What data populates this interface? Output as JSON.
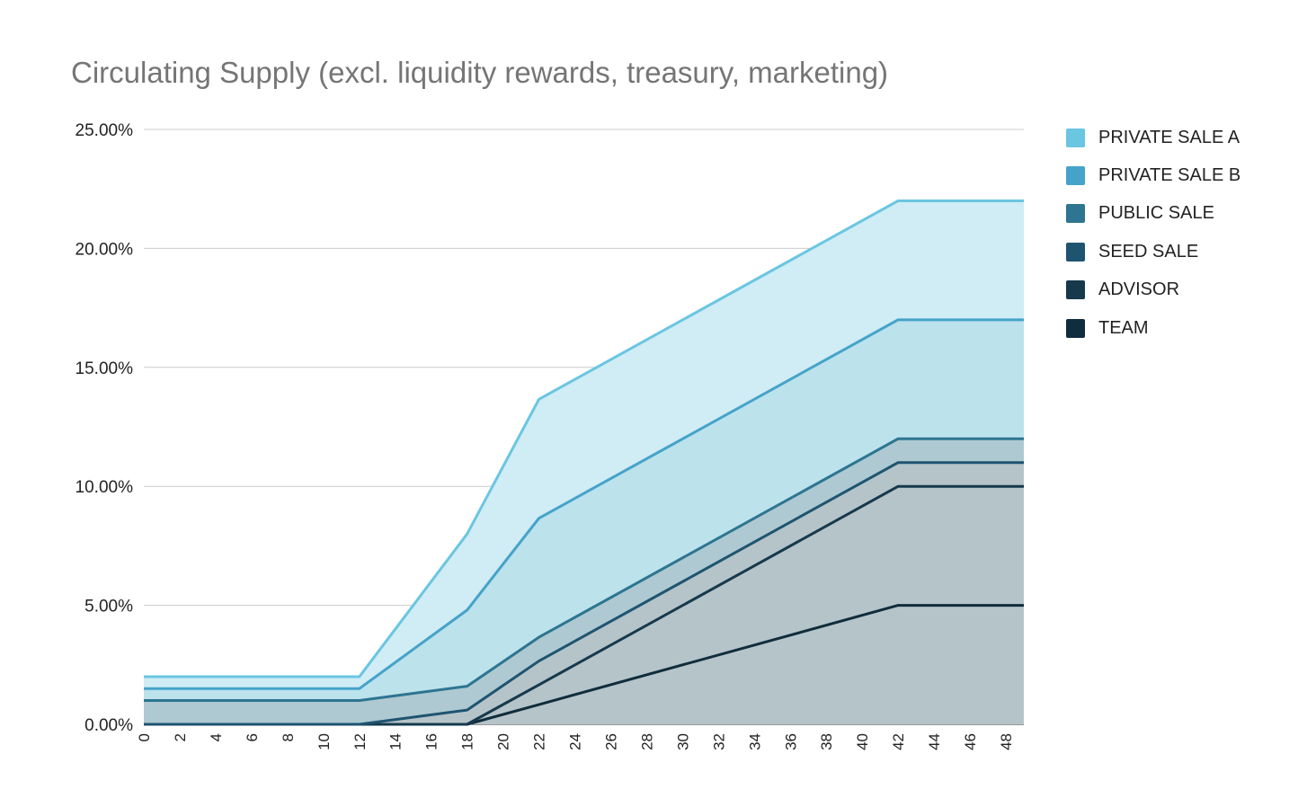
{
  "chart_data": {
    "type": "area",
    "stacked": true,
    "title": "Circulating Supply (excl. liquidity rewards, treasury, marketing)",
    "xlabel": "",
    "ylabel": "",
    "x_ticks": [
      "0",
      "2",
      "4",
      "6",
      "8",
      "10",
      "12",
      "14",
      "16",
      "18",
      "20",
      "22",
      "24",
      "26",
      "28",
      "30",
      "32",
      "34",
      "36",
      "38",
      "40",
      "42",
      "44",
      "46",
      "48"
    ],
    "x": [
      0,
      12,
      18,
      22,
      42,
      49
    ],
    "ylim": [
      0,
      25
    ],
    "y_ticks": [
      "0.00%",
      "5.00%",
      "10.00%",
      "15.00%",
      "20.00%",
      "25.00%"
    ],
    "grid": true,
    "legend_position": "right",
    "series": [
      {
        "name": "TEAM",
        "color": "#0f2d3c",
        "values": [
          0,
          0,
          0,
          0.83,
          5.0,
          5.0
        ]
      },
      {
        "name": "ADVISOR",
        "color": "#16394c",
        "values": [
          0,
          0,
          0,
          0.83,
          5.0,
          5.0
        ]
      },
      {
        "name": "SEED SALE",
        "color": "#1e5470",
        "values": [
          0,
          0,
          0.6,
          1.0,
          1.0,
          1.0
        ]
      },
      {
        "name": "PUBLIC SALE",
        "color": "#2d7591",
        "values": [
          1.0,
          1.0,
          1.0,
          1.0,
          1.0,
          1.0
        ]
      },
      {
        "name": "PRIVATE SALE B",
        "color": "#45a3c9",
        "values": [
          0.5,
          0.5,
          3.2,
          5.0,
          5.0,
          5.0
        ]
      },
      {
        "name": "PRIVATE SALE A",
        "color": "#6ac6e1",
        "values": [
          0.5,
          0.5,
          3.2,
          5.0,
          5.0,
          5.0
        ]
      }
    ],
    "fills": [
      "#b5c4c9",
      "#b5c4c9",
      "#b5c4c9",
      "#aec9d1",
      "#bce2ec",
      "#d0ecf5"
    ],
    "legend_order": [
      "PRIVATE SALE A",
      "PRIVATE SALE B",
      "PUBLIC SALE",
      "SEED SALE",
      "ADVISOR",
      "TEAM"
    ]
  }
}
